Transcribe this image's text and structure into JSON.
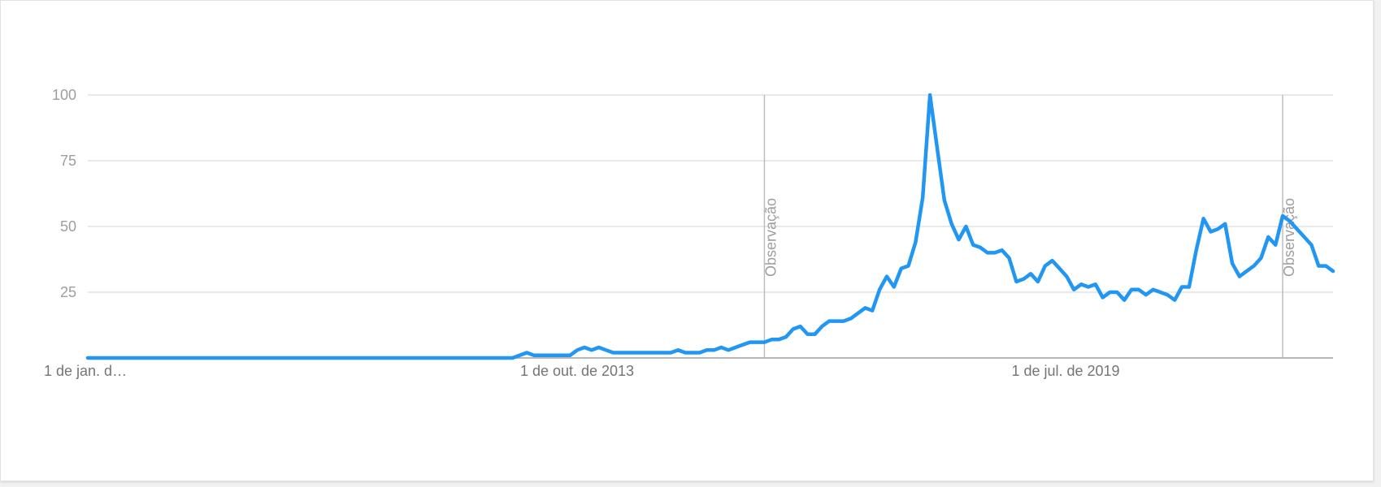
{
  "chart_data": {
    "type": "line",
    "y_ticks": [
      "100",
      "75",
      "50",
      "25"
    ],
    "ylim": [
      0,
      100
    ],
    "x_tick_labels": [
      "1 de jan. d…",
      "1 de out. de 2013",
      "1 de jul. de 2019"
    ],
    "annotations": [
      "Observação",
      "Observação"
    ],
    "grid": true,
    "line_color": "#2196f3",
    "series": [
      {
        "values": [
          0,
          0,
          0,
          0,
          0,
          0,
          0,
          0,
          0,
          0,
          0,
          0,
          0,
          0,
          0,
          0,
          0,
          0,
          0,
          0,
          0,
          0,
          0,
          0,
          0,
          0,
          0,
          0,
          0,
          0,
          0,
          0,
          0,
          0,
          0,
          0,
          0,
          0,
          0,
          0,
          0,
          0,
          0,
          0,
          0,
          0,
          0,
          0,
          0,
          0,
          0,
          0,
          0,
          0,
          0,
          0,
          0,
          0,
          0,
          0,
          1,
          2,
          1,
          1,
          1,
          1,
          1,
          1,
          3,
          4,
          3,
          4,
          3,
          2,
          2,
          2,
          2,
          2,
          2,
          2,
          2,
          2,
          3,
          2,
          2,
          2,
          3,
          3,
          4,
          3,
          4,
          5,
          6,
          6,
          6,
          7,
          7,
          8,
          11,
          12,
          9,
          9,
          12,
          14,
          14,
          14,
          15,
          17,
          19,
          18,
          26,
          31,
          27,
          34,
          35,
          44,
          61,
          100,
          80,
          60,
          51,
          45,
          50,
          43,
          42,
          40,
          40,
          41,
          38,
          29,
          30,
          32,
          29,
          35,
          37,
          34,
          31,
          26,
          28,
          27,
          28,
          23,
          25,
          25,
          22,
          26,
          26,
          24,
          26,
          25,
          24,
          22,
          27,
          27,
          41,
          53,
          48,
          49,
          51,
          36,
          31,
          33,
          35,
          38,
          46,
          43,
          54,
          52,
          49,
          46,
          43,
          35,
          35,
          33
        ]
      }
    ]
  }
}
